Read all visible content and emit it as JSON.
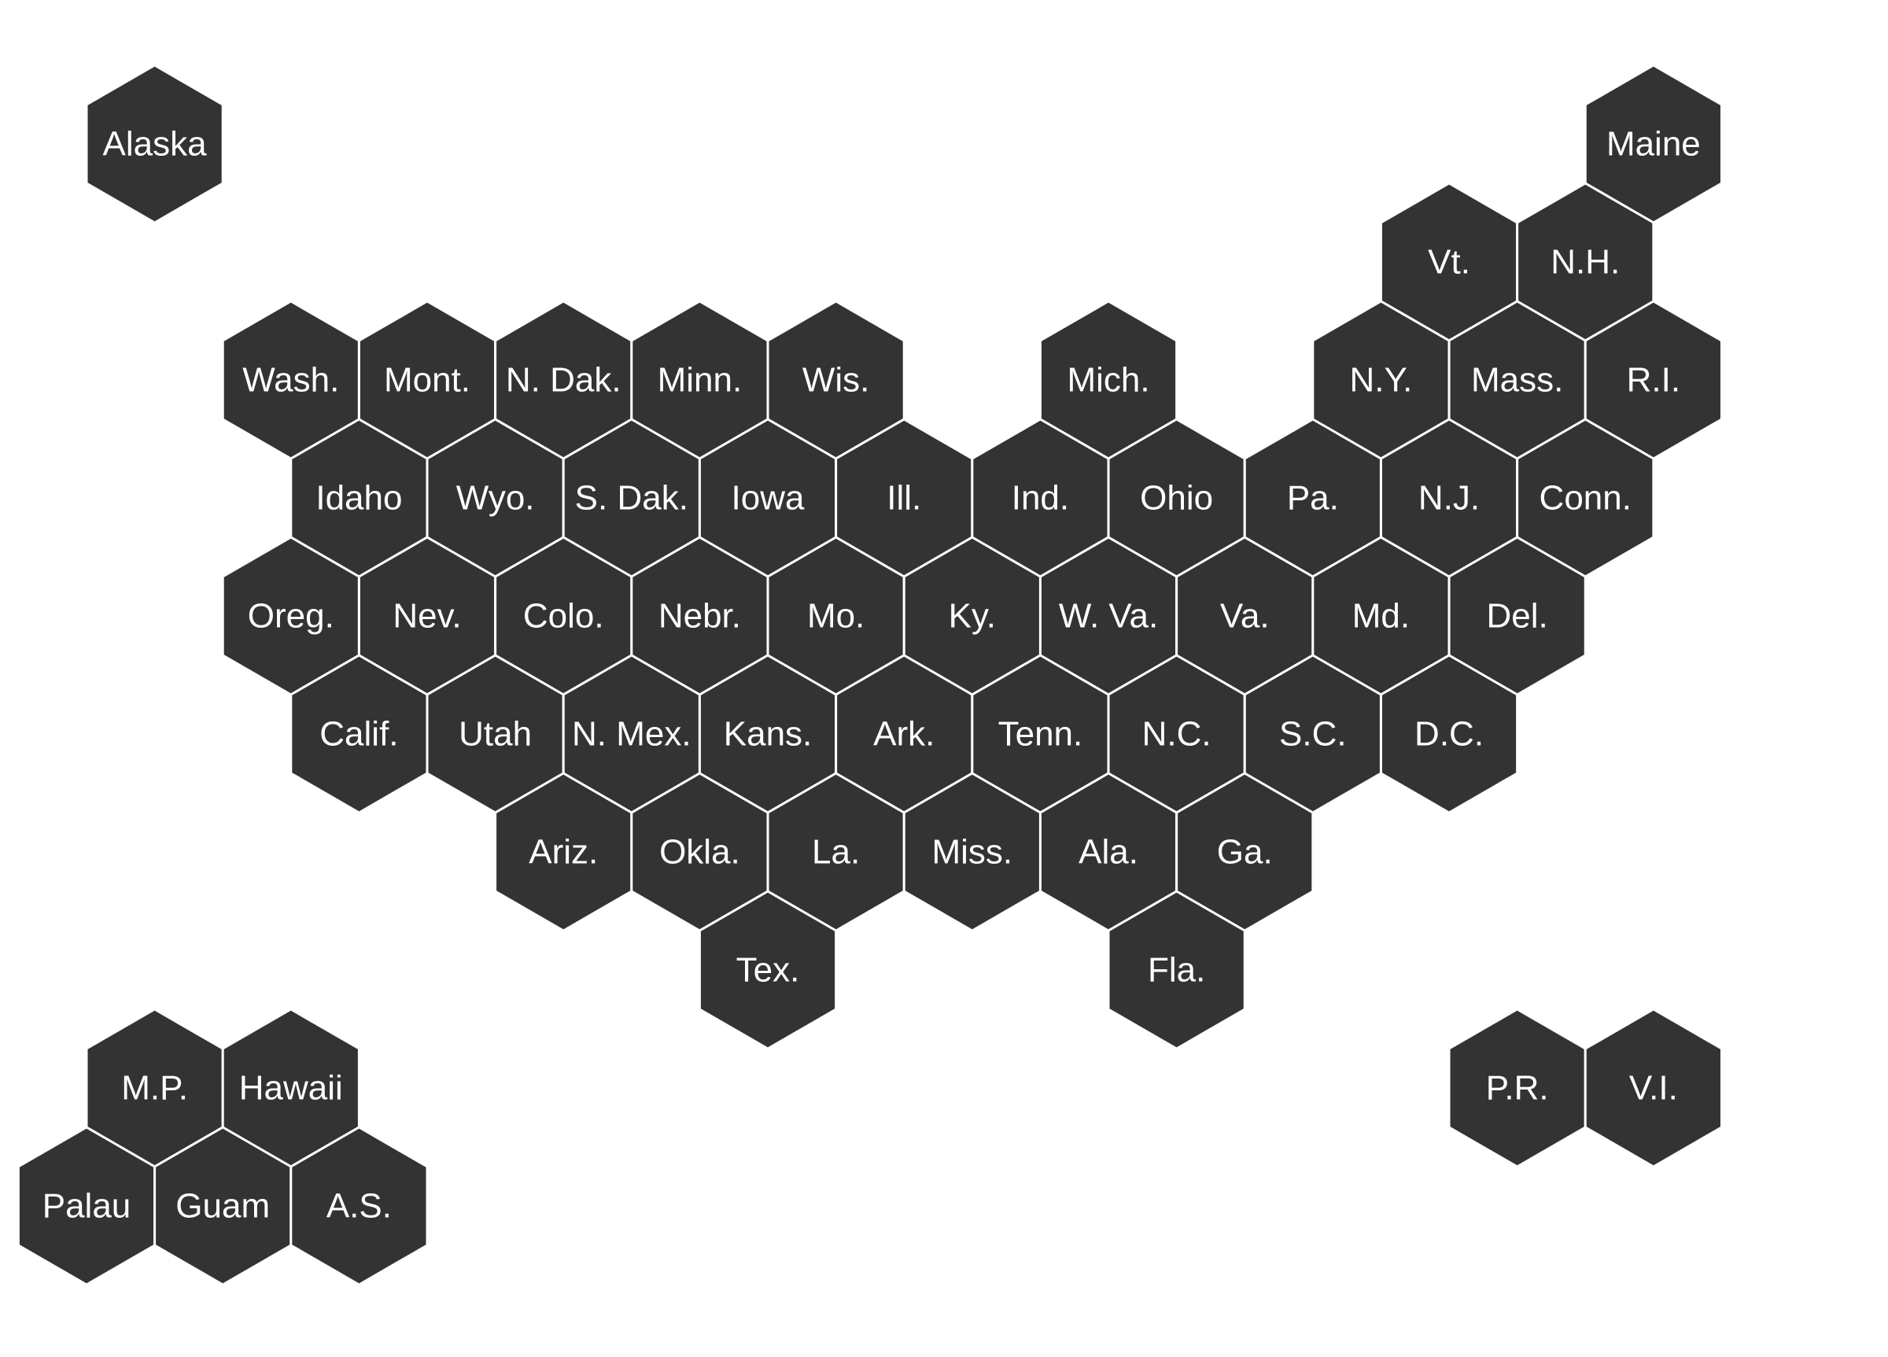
{
  "map": {
    "tile_color": "#333333",
    "border_color": "#ffffff",
    "label_color": "#ffffff",
    "tiles": [
      {
        "label": "Alaska",
        "row": 0,
        "col": 1
      },
      {
        "label": "Maine",
        "row": 0,
        "col": 23
      },
      {
        "label": "Vt.",
        "row": 1,
        "col": 20
      },
      {
        "label": "N.H.",
        "row": 1,
        "col": 22
      },
      {
        "label": "Wash.",
        "row": 2,
        "col": 3
      },
      {
        "label": "Mont.",
        "row": 2,
        "col": 5
      },
      {
        "label": "N. Dak.",
        "row": 2,
        "col": 7
      },
      {
        "label": "Minn.",
        "row": 2,
        "col": 9
      },
      {
        "label": "Wis.",
        "row": 2,
        "col": 11
      },
      {
        "label": "Mich.",
        "row": 2,
        "col": 15
      },
      {
        "label": "N.Y.",
        "row": 2,
        "col": 19
      },
      {
        "label": "Mass.",
        "row": 2,
        "col": 21
      },
      {
        "label": "R.I.",
        "row": 2,
        "col": 23
      },
      {
        "label": "Idaho",
        "row": 3,
        "col": 4
      },
      {
        "label": "Wyo.",
        "row": 3,
        "col": 6
      },
      {
        "label": "S. Dak.",
        "row": 3,
        "col": 8
      },
      {
        "label": "Iowa",
        "row": 3,
        "col": 10
      },
      {
        "label": "Ill.",
        "row": 3,
        "col": 12
      },
      {
        "label": "Ind.",
        "row": 3,
        "col": 14
      },
      {
        "label": "Ohio",
        "row": 3,
        "col": 16
      },
      {
        "label": "Pa.",
        "row": 3,
        "col": 18
      },
      {
        "label": "N.J.",
        "row": 3,
        "col": 20
      },
      {
        "label": "Conn.",
        "row": 3,
        "col": 22
      },
      {
        "label": "Oreg.",
        "row": 4,
        "col": 3
      },
      {
        "label": "Nev.",
        "row": 4,
        "col": 5
      },
      {
        "label": "Colo.",
        "row": 4,
        "col": 7
      },
      {
        "label": "Nebr.",
        "row": 4,
        "col": 9
      },
      {
        "label": "Mo.",
        "row": 4,
        "col": 11
      },
      {
        "label": "Ky.",
        "row": 4,
        "col": 13
      },
      {
        "label": "W. Va.",
        "row": 4,
        "col": 15
      },
      {
        "label": "Va.",
        "row": 4,
        "col": 17
      },
      {
        "label": "Md.",
        "row": 4,
        "col": 19
      },
      {
        "label": "Del.",
        "row": 4,
        "col": 21
      },
      {
        "label": "Calif.",
        "row": 5,
        "col": 4
      },
      {
        "label": "Utah",
        "row": 5,
        "col": 6
      },
      {
        "label": "N. Mex.",
        "row": 5,
        "col": 8
      },
      {
        "label": "Kans.",
        "row": 5,
        "col": 10
      },
      {
        "label": "Ark.",
        "row": 5,
        "col": 12
      },
      {
        "label": "Tenn.",
        "row": 5,
        "col": 14
      },
      {
        "label": "N.C.",
        "row": 5,
        "col": 16
      },
      {
        "label": "S.C.",
        "row": 5,
        "col": 18
      },
      {
        "label": "D.C.",
        "row": 5,
        "col": 20
      },
      {
        "label": "Ariz.",
        "row": 6,
        "col": 7
      },
      {
        "label": "Okla.",
        "row": 6,
        "col": 9
      },
      {
        "label": "La.",
        "row": 6,
        "col": 11
      },
      {
        "label": "Miss.",
        "row": 6,
        "col": 13
      },
      {
        "label": "Ala.",
        "row": 6,
        "col": 15
      },
      {
        "label": "Ga.",
        "row": 6,
        "col": 17
      },
      {
        "label": "Tex.",
        "row": 7,
        "col": 10
      },
      {
        "label": "Fla.",
        "row": 7,
        "col": 16
      },
      {
        "label": "M.P.",
        "row": 8,
        "col": 1
      },
      {
        "label": "Hawaii",
        "row": 8,
        "col": 3
      },
      {
        "label": "P.R.",
        "row": 8,
        "col": 21
      },
      {
        "label": "V.I.",
        "row": 8,
        "col": 23
      },
      {
        "label": "Palau",
        "row": 9,
        "col": 0
      },
      {
        "label": "Guam",
        "row": 9,
        "col": 2
      },
      {
        "label": "A.S.",
        "row": 9,
        "col": 4
      }
    ]
  }
}
